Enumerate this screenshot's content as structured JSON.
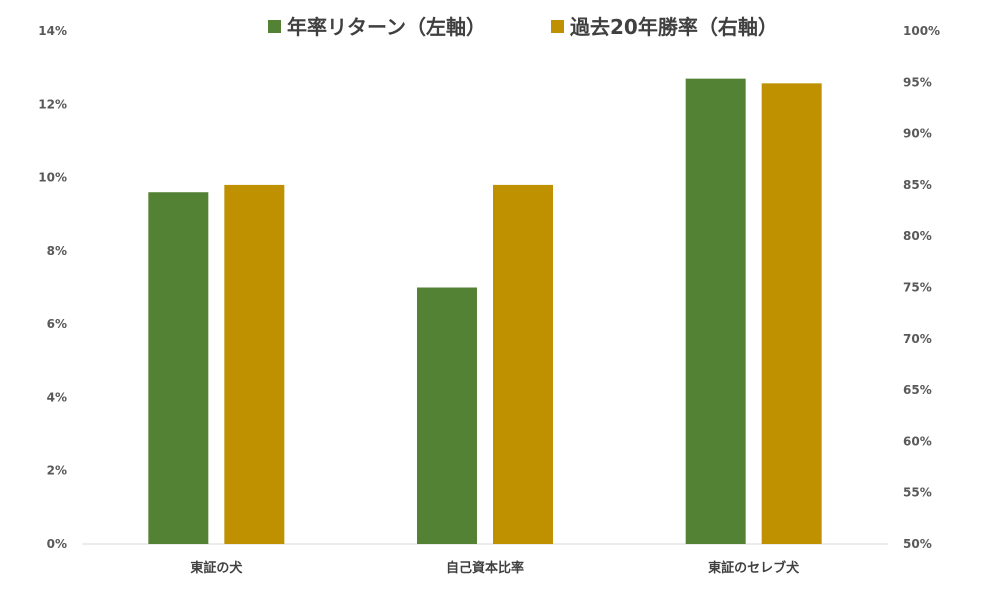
{
  "chart_data": {
    "type": "bar",
    "categories": [
      "東証の犬",
      "自己資本比率",
      "東証のセレブ犬"
    ],
    "series": [
      {
        "name": "年率リターン（左軸）",
        "axis": "left",
        "color": "#548235",
        "values": [
          9.6,
          7.0,
          12.7
        ]
      },
      {
        "name": "過去20年勝率（右軸）",
        "axis": "right",
        "color": "#BF9000",
        "values": [
          85.0,
          85.0,
          94.9
        ]
      }
    ],
    "left_axis": {
      "min": 0,
      "max": 14,
      "step": 2,
      "ticks": [
        "0%",
        "2%",
        "4%",
        "6%",
        "8%",
        "10%",
        "12%",
        "14%"
      ]
    },
    "right_axis": {
      "min": 50,
      "max": 100,
      "step": 5,
      "ticks": [
        "50%",
        "55%",
        "60%",
        "65%",
        "70%",
        "75%",
        "80%",
        "85%",
        "90%",
        "95%",
        "100%"
      ]
    },
    "legend_position": "top-center",
    "grid": false
  }
}
